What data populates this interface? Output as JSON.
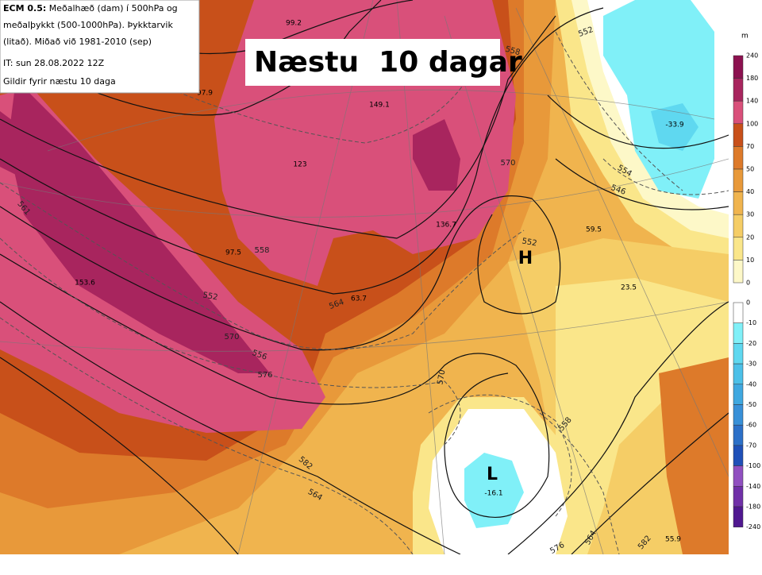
{
  "header": {
    "model": "ECM 0.5:",
    "lines": [
      " Meðalhæð (dam) í 500hPa og",
      "meðalþykkt (500-1000hPa). Þykktarvik",
      "(litað). Miðað við 1981-2010 (sep)",
      "IT: sun 28.08.2022 12Z",
      "Gildir fyrir næstu 10 daga"
    ]
  },
  "title": "Næstu  10 dagar",
  "map": {
    "pressure_centers": [
      "H",
      "L"
    ],
    "anomaly_labels": [
      -16.1,
      149.1,
      123.0,
      136.7,
      97.5,
      153.6,
      63.7,
      59.5,
      23.5,
      -33.9,
      55.9,
      99.2,
      97.9
    ],
    "contour_labels": [
      552,
      558,
      570,
      552,
      554,
      546,
      558,
      564,
      552,
      570,
      556,
      576,
      582,
      564,
      570,
      558,
      576,
      564,
      582,
      561
    ]
  },
  "colorbar": {
    "unit": "m",
    "positive": [
      {
        "value": 240,
        "color": "#8c1150"
      },
      {
        "value": 180,
        "color": "#a8255e"
      },
      {
        "value": 140,
        "color": "#d9507a"
      },
      {
        "value": 100,
        "color": "#c8501a"
      },
      {
        "value": 70,
        "color": "#dd7a2a"
      },
      {
        "value": 50,
        "color": "#e8993a"
      },
      {
        "value": 40,
        "color": "#f0b44e"
      },
      {
        "value": 30,
        "color": "#f5cd66"
      },
      {
        "value": 20,
        "color": "#fae68a"
      },
      {
        "value": 10,
        "color": "#fdf8c8"
      },
      {
        "value": 0
      }
    ],
    "negative": [
      {
        "value": 0,
        "color": "#ffffff"
      },
      {
        "value": -10,
        "color": "#80f0f8"
      },
      {
        "value": -20,
        "color": "#5fd8f0"
      },
      {
        "value": -30,
        "color": "#4cc0e8"
      },
      {
        "value": -40,
        "color": "#3fa8e0"
      },
      {
        "value": -50,
        "color": "#3890d8"
      },
      {
        "value": -60,
        "color": "#2c70c8"
      },
      {
        "value": -70,
        "color": "#1f50b8"
      },
      {
        "value": -100,
        "color": "#9050c0"
      },
      {
        "value": -140,
        "color": "#7030a8"
      },
      {
        "value": -180,
        "color": "#501890"
      },
      {
        "value": -240
      }
    ]
  }
}
